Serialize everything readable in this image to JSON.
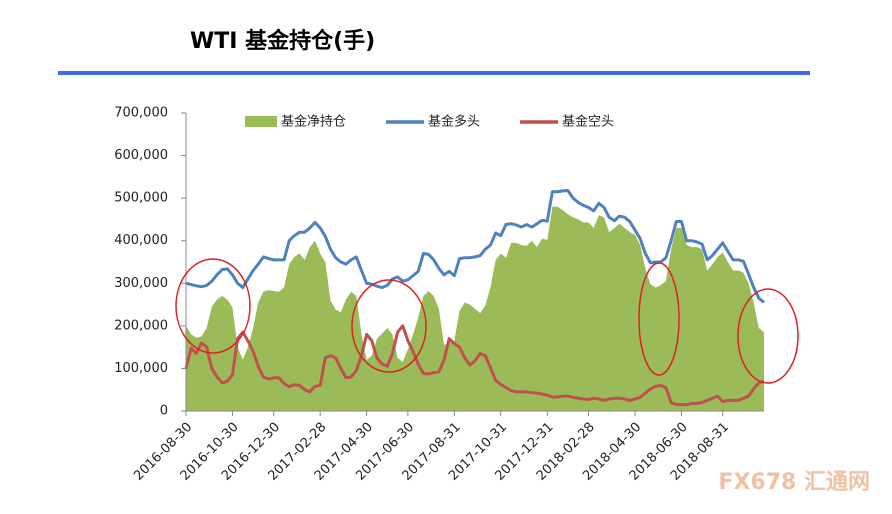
{
  "chart_data": {
    "type": "line",
    "title": "WTI 基金持仓(手)",
    "watermark": "FX678 汇通网",
    "categories": [
      "2016-08-30",
      null,
      null,
      null,
      null,
      null,
      null,
      null,
      null,
      "2016-10-30",
      null,
      null,
      null,
      null,
      null,
      null,
      null,
      "2016-12-30",
      null,
      null,
      null,
      null,
      null,
      null,
      null,
      null,
      "2017-02-28",
      null,
      null,
      null,
      null,
      null,
      null,
      null,
      null,
      "2017-04-30",
      null,
      null,
      null,
      null,
      null,
      null,
      null,
      "2017-06-30",
      null,
      null,
      null,
      null,
      null,
      null,
      null,
      null,
      "2017-08-31",
      null,
      null,
      null,
      null,
      null,
      null,
      null,
      null,
      "2017-10-31",
      null,
      null,
      null,
      null,
      null,
      null,
      null,
      null,
      "2017-12-31",
      null,
      null,
      null,
      null,
      null,
      null,
      null,
      "2018-02-28",
      null,
      null,
      null,
      null,
      null,
      null,
      null,
      null,
      "2018-04-30",
      null,
      null,
      null,
      null,
      null,
      null,
      null,
      null,
      "2018-06-30",
      null,
      null,
      null,
      null,
      null,
      null,
      null,
      "2018-08-31",
      null,
      null,
      null,
      null,
      null,
      null,
      null,
      null
    ],
    "series": [
      {
        "name": "基金净持仓",
        "type": "area",
        "color": "#9bbb59",
        "values": [
          200000,
          180000,
          172000,
          175000,
          195000,
          245000,
          262000,
          270000,
          262000,
          243000,
          150000,
          120000,
          150000,
          195000,
          255000,
          280000,
          284000,
          282000,
          280000,
          290000,
          345000,
          362000,
          370000,
          355000,
          385000,
          400000,
          370000,
          350000,
          260000,
          238000,
          232000,
          262000,
          280000,
          270000,
          180000,
          120000,
          130000,
          170000,
          182000,
          195000,
          180000,
          125000,
          115000,
          145000,
          180000,
          220000,
          270000,
          282000,
          270000,
          240000,
          155000,
          160000,
          165000,
          235000,
          255000,
          250000,
          240000,
          230000,
          248000,
          290000,
          355000,
          370000,
          360000,
          395000,
          395000,
          390000,
          388000,
          400000,
          385000,
          405000,
          402000,
          480000,
          480000,
          472000,
          462000,
          455000,
          450000,
          443000,
          443000,
          430000,
          460000,
          455000,
          420000,
          430000,
          440000,
          430000,
          420000,
          414000,
          390000,
          335000,
          298000,
          290000,
          296000,
          305000,
          380000,
          430000,
          430000,
          390000,
          385000,
          385000,
          380000,
          330000,
          345000,
          362000,
          372000,
          350000,
          330000,
          330000,
          325000,
          300000,
          255000,
          195000,
          185000
        ]
      },
      {
        "name": "基金多头",
        "type": "line",
        "color": "#4f81bd",
        "values": [
          300000,
          297000,
          294000,
          292000,
          295000,
          305000,
          320000,
          332000,
          334000,
          320000,
          300000,
          290000,
          310000,
          330000,
          345000,
          362000,
          358000,
          355000,
          355000,
          355000,
          400000,
          412000,
          420000,
          420000,
          430000,
          443000,
          430000,
          410000,
          380000,
          360000,
          350000,
          345000,
          355000,
          362000,
          330000,
          300000,
          298000,
          293000,
          290000,
          295000,
          310000,
          315000,
          305000,
          308000,
          318000,
          328000,
          370000,
          368000,
          355000,
          335000,
          320000,
          328000,
          318000,
          358000,
          360000,
          360000,
          362000,
          365000,
          380000,
          390000,
          418000,
          412000,
          438000,
          440000,
          437000,
          432000,
          438000,
          432000,
          440000,
          448000,
          446000,
          515000,
          515000,
          517000,
          518000,
          500000,
          490000,
          483000,
          478000,
          470000,
          488000,
          478000,
          455000,
          447000,
          458000,
          455000,
          445000,
          425000,
          405000,
          370000,
          348000,
          350000,
          350000,
          360000,
          400000,
          445000,
          445000,
          400000,
          400000,
          397000,
          392000,
          355000,
          365000,
          380000,
          395000,
          375000,
          355000,
          355000,
          352000,
          322000,
          290000,
          265000,
          255000
        ]
      },
      {
        "name": "基金空头",
        "type": "line",
        "color": "#c0504d",
        "values": [
          100000,
          148000,
          135000,
          160000,
          150000,
          100000,
          80000,
          66000,
          70000,
          85000,
          170000,
          185000,
          165000,
          140000,
          105000,
          80000,
          75000,
          78000,
          78000,
          65000,
          57000,
          62000,
          60000,
          50000,
          45000,
          58000,
          60000,
          125000,
          130000,
          125000,
          100000,
          78000,
          80000,
          95000,
          130000,
          180000,
          165000,
          125000,
          110000,
          105000,
          135000,
          185000,
          200000,
          165000,
          140000,
          110000,
          88000,
          87000,
          90000,
          92000,
          120000,
          170000,
          158000,
          150000,
          125000,
          108000,
          118000,
          135000,
          130000,
          102000,
          72000,
          62000,
          55000,
          48000,
          45000,
          45000,
          45000,
          43000,
          42000,
          40000,
          37000,
          33000,
          33000,
          35000,
          35000,
          32000,
          30000,
          28000,
          27000,
          30000,
          28000,
          25000,
          28000,
          30000,
          30000,
          28000,
          25000,
          28000,
          32000,
          42000,
          52000,
          58000,
          60000,
          55000,
          20000,
          15000,
          15000,
          15000,
          18000,
          18000,
          20000,
          25000,
          30000,
          35000,
          22000,
          25000,
          25000,
          25000,
          30000,
          35000,
          52000,
          66000,
          70000
        ]
      }
    ],
    "ylim": [
      0,
      700000
    ],
    "yticks": [
      0,
      {
        "value": 100000,
        "label": "100,000"
      },
      {
        "value": 200000,
        "label": "200,000"
      },
      {
        "value": 300000,
        "label": "300,000"
      },
      {
        "value": 400000,
        "label": "400,000"
      },
      {
        "value": 500000,
        "label": "500,000"
      },
      {
        "value": 600000,
        "label": "600,000"
      },
      {
        "value": 700000,
        "label": "700,000"
      }
    ],
    "grid": false,
    "legend": "top"
  }
}
